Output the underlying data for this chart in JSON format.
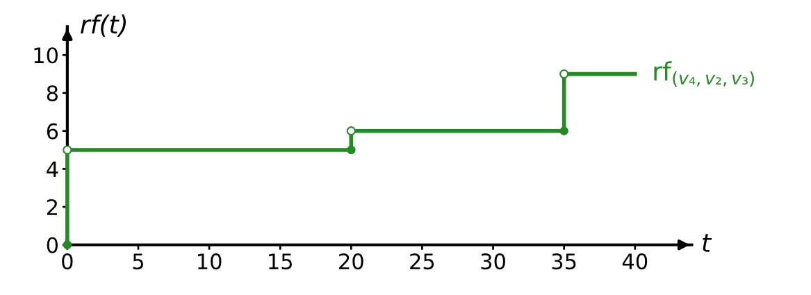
{
  "chart_data": {
    "type": "step",
    "xlabel": "t",
    "ylabel": "rf(t)",
    "x": [
      0,
      0,
      20,
      20,
      35,
      35,
      40
    ],
    "series": [
      {
        "name": "rf$_{(v₄,v₂,v₃)}$",
        "color": "#228b22",
        "values": [
          0,
          5,
          5,
          6,
          6,
          9,
          9
        ]
      }
    ],
    "xlim": [
      0,
      44
    ],
    "ylim": [
      0,
      11.5
    ],
    "xticks": [
      0,
      5,
      10,
      15,
      20,
      25,
      30,
      35,
      40
    ],
    "yticks": [
      0,
      2,
      4,
      6,
      8,
      10
    ],
    "marker": "circle",
    "grid": false,
    "legend": false
  }
}
